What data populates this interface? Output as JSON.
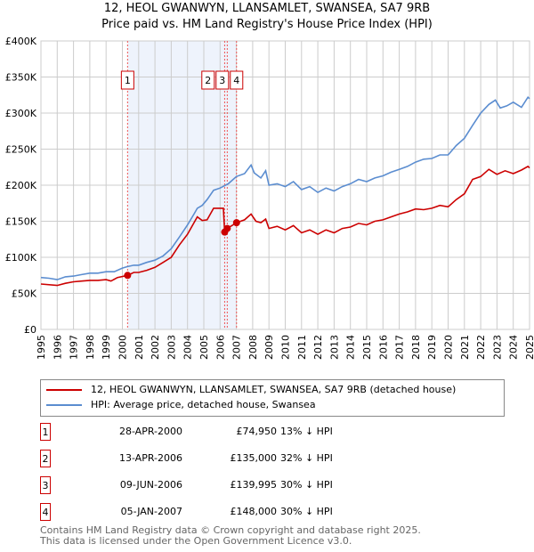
{
  "chart_data": {
    "type": "line",
    "title": "12, HEOL GWANWYN, LLANSAMLET, SWANSEA, SA7 9RB",
    "subtitle": "Price paid vs. HM Land Registry's House Price Index (HPI)",
    "xlim": [
      1995,
      2025
    ],
    "ylim": [
      0,
      400000
    ],
    "yticks": [
      {
        "v": 0,
        "label": "£0"
      },
      {
        "v": 50000,
        "label": "£50K"
      },
      {
        "v": 100000,
        "label": "£100K"
      },
      {
        "v": 150000,
        "label": "£150K"
      },
      {
        "v": 200000,
        "label": "£200K"
      },
      {
        "v": 250000,
        "label": "£250K"
      },
      {
        "v": 300000,
        "label": "£300K"
      },
      {
        "v": 350000,
        "label": "£350K"
      },
      {
        "v": 400000,
        "label": "£400K"
      }
    ],
    "xticks": [
      "1995",
      "1996",
      "1997",
      "1998",
      "1999",
      "2000",
      "2001",
      "2002",
      "2003",
      "2004",
      "2005",
      "2006",
      "2007",
      "2008",
      "2009",
      "2010",
      "2011",
      "2012",
      "2013",
      "2014",
      "2015",
      "2016",
      "2017",
      "2018",
      "2019",
      "2020",
      "2021",
      "2022",
      "2023",
      "2024",
      "2025"
    ],
    "grid": true,
    "shaded_range": [
      2000.32,
      2007.01
    ],
    "series": [
      {
        "name": "12, HEOL GWANWYN, LLANSAMLET, SWANSEA, SA7 9RB (detached house)",
        "color": "#cc0000",
        "x": [
          1995,
          1996,
          1996.5,
          1997,
          1997.5,
          1998,
          1998.5,
          1999,
          1999.3,
          1999.7,
          2000.32,
          2000.7,
          2001,
          2001.5,
          2002,
          2002.5,
          2003,
          2003.5,
          2004,
          2004.4,
          2004.6,
          2004.9,
          2005.2,
          2005.6,
          2006.2,
          2006.28,
          2006.44,
          2007.01,
          2007.5,
          2007.9,
          2008.2,
          2008.5,
          2008.8,
          2009,
          2009.5,
          2010,
          2010.5,
          2011,
          2011.5,
          2012,
          2012.5,
          2013,
          2013.5,
          2014,
          2014.5,
          2015,
          2015.5,
          2016,
          2016.5,
          2017,
          2017.5,
          2018,
          2018.5,
          2019,
          2019.5,
          2020,
          2020.5,
          2021,
          2021.5,
          2022,
          2022.5,
          2023,
          2023.5,
          2024,
          2024.5,
          2024.9,
          2025
        ],
        "y": [
          63,
          61,
          64,
          66,
          67,
          68,
          68,
          69,
          67,
          72,
          75,
          79,
          79,
          82,
          86,
          93,
          100,
          117,
          132,
          148,
          156,
          151,
          152,
          168,
          168,
          135,
          140,
          148,
          152,
          160,
          150,
          148,
          153,
          140,
          143,
          138,
          144,
          134,
          138,
          132,
          138,
          134,
          140,
          142,
          147,
          145,
          150,
          152,
          156,
          160,
          163,
          167,
          166,
          168,
          172,
          170,
          180,
          188,
          208,
          212,
          222,
          215,
          220,
          216,
          221,
          226,
          224
        ]
      },
      {
        "name": "HPI: Average price, detached house, Swansea",
        "color": "#5b8dd0",
        "x": [
          1995,
          1995.5,
          1996,
          1996.5,
          1997,
          1997.5,
          1998,
          1998.5,
          1999,
          1999.5,
          2000,
          2000.3,
          2000.7,
          2001,
          2001.5,
          2002,
          2002.5,
          2003,
          2003.5,
          2004,
          2004.4,
          2004.6,
          2004.9,
          2005.2,
          2005.6,
          2006,
          2006.5,
          2007,
          2007.5,
          2007.9,
          2008.1,
          2008.5,
          2008.8,
          2009,
          2009.5,
          2010,
          2010.5,
          2011,
          2011.5,
          2012,
          2012.5,
          2013,
          2013.5,
          2014,
          2014.5,
          2015,
          2015.5,
          2016,
          2016.5,
          2017,
          2017.5,
          2018,
          2018.5,
          2019,
          2019.5,
          2020,
          2020.5,
          2021,
          2021.5,
          2022,
          2022.5,
          2022.9,
          2023.2,
          2023.6,
          2024,
          2024.5,
          2024.9,
          2025
        ],
        "y": [
          72,
          71,
          69,
          73,
          74,
          76,
          78,
          78,
          80,
          80,
          85,
          87,
          89,
          89,
          93,
          96,
          102,
          112,
          128,
          145,
          160,
          168,
          172,
          180,
          193,
          196,
          202,
          212,
          216,
          228,
          217,
          210,
          220,
          200,
          202,
          198,
          205,
          194,
          198,
          190,
          196,
          192,
          198,
          202,
          208,
          205,
          210,
          213,
          218,
          222,
          226,
          232,
          236,
          237,
          242,
          242,
          255,
          265,
          283,
          300,
          312,
          318,
          307,
          310,
          315,
          308,
          322,
          320
        ]
      }
    ],
    "sales": [
      {
        "n": "1",
        "date": "28-APR-2000",
        "price": "£74,950",
        "x": 2000.32,
        "y": 74950,
        "hpi": "13% ↓ HPI"
      },
      {
        "n": "2",
        "date": "13-APR-2006",
        "price": "£135,000",
        "x": 2006.28,
        "y": 135000,
        "hpi": "32% ↓ HPI"
      },
      {
        "n": "3",
        "date": "09-JUN-2006",
        "price": "£139,995",
        "x": 2006.44,
        "y": 139995,
        "hpi": "30% ↓ HPI"
      },
      {
        "n": "4",
        "date": "05-JAN-2007",
        "price": "£148,000",
        "x": 2007.01,
        "y": 148000,
        "hpi": "30% ↓ HPI"
      }
    ]
  },
  "footer": {
    "line1": "Contains HM Land Registry data © Crown copyright and database right 2025.",
    "line2": "This data is licensed under the Open Government Licence v3.0."
  }
}
